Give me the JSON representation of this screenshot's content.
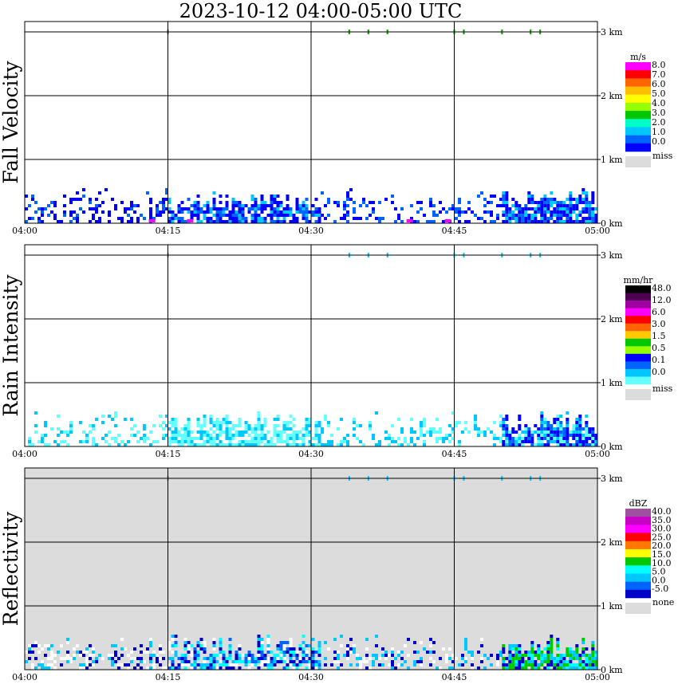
{
  "title": "2023-10-12   04:00-05:00 UTC",
  "x_ticks": [
    "04:00",
    "04:15",
    "04:30",
    "04:45",
    "05:00"
  ],
  "y_ticks": [
    "0 km",
    "1 km",
    "2 km",
    "3 km"
  ],
  "colors": {
    "frame": "#000000",
    "missing": "#dcdcdc",
    "fill_sparse": "#ffffff"
  },
  "chart_data": [
    {
      "type": "heatmap",
      "title": "Fall Velocity",
      "ylabel": "Fall Velocity",
      "x_range": [
        "04:00",
        "05:00"
      ],
      "y_range_km": [
        0,
        3
      ],
      "grid": true,
      "legend_placement": "right",
      "background": "none",
      "legend": {
        "unit": "m/s",
        "labels": [
          "8.0",
          "7.0",
          "6.0",
          "5.0",
          "4.0",
          "3.0",
          "2.0",
          "1.0",
          "0.0"
        ],
        "colors": [
          "#ff00ff",
          "#ff0000",
          "#ff6400",
          "#ffbe00",
          "#ffff00",
          "#96ff00",
          "#00c800",
          "#00ffc8",
          "#00c8ff",
          "#0064ff",
          "#0000ff"
        ],
        "missing_label": "miss"
      },
      "echo": {
        "top_km": 0.55,
        "segments": [
          {
            "start": "04:00",
            "end": "04:15",
            "density": 0.35,
            "colors": [
              "#0000ff",
              "#0064ff",
              "#0000ff"
            ]
          },
          {
            "start": "04:15",
            "end": "04:31",
            "density": 0.75,
            "colors": [
              "#0000ff",
              "#0064ff",
              "#0000ff",
              "#00c8ff"
            ]
          },
          {
            "start": "04:31",
            "end": "04:50",
            "density": 0.25,
            "colors": [
              "#0000ff",
              "#0064ff"
            ]
          },
          {
            "start": "04:50",
            "end": "05:00",
            "density": 0.85,
            "colors": [
              "#0000ff",
              "#0064ff",
              "#0000ff",
              "#00c8ff"
            ]
          }
        ],
        "accents": [
          {
            "time": "04:13",
            "color": "#ff00ff"
          },
          {
            "time": "04:17",
            "color": "#ff00ff"
          },
          {
            "time": "04:40",
            "color": "#ff00ff"
          },
          {
            "time": "04:44",
            "color": "#ff00ff"
          }
        ]
      },
      "top_marks": {
        "times": [
          "04:15",
          "04:34",
          "04:36",
          "04:38",
          "04:45",
          "04:46",
          "04:50",
          "04:53",
          "04:54"
        ],
        "color": "#00a000"
      }
    },
    {
      "type": "heatmap",
      "title": "Rain Intensity",
      "ylabel": "Rain Intensity",
      "x_range": [
        "04:00",
        "05:00"
      ],
      "y_range_km": [
        0,
        3
      ],
      "grid": true,
      "legend_placement": "right",
      "background": "none",
      "legend": {
        "unit": "mm/hr",
        "labels": [
          "48.0",
          "12.0",
          "6.0",
          "3.0",
          "1.5",
          "0.5",
          "0.1",
          "0.0"
        ],
        "colors": [
          "#000000",
          "#500050",
          "#a000a0",
          "#ff00ff",
          "#ff0000",
          "#ff6400",
          "#ffc800",
          "#00c800",
          "#96ff00",
          "#0000ff",
          "#0064ff",
          "#00c8ff",
          "#64ffff"
        ],
        "missing_label": "miss"
      },
      "echo": {
        "top_km": 0.55,
        "segments": [
          {
            "start": "04:00",
            "end": "04:15",
            "density": 0.3,
            "colors": [
              "#64ffff",
              "#64ffff",
              "#00c8ff"
            ]
          },
          {
            "start": "04:15",
            "end": "04:31",
            "density": 0.75,
            "colors": [
              "#64ffff",
              "#64ffff",
              "#00c8ff"
            ]
          },
          {
            "start": "04:31",
            "end": "04:50",
            "density": 0.25,
            "colors": [
              "#64ffff",
              "#00c8ff"
            ]
          },
          {
            "start": "04:50",
            "end": "05:00",
            "density": 0.85,
            "colors": [
              "#64ffff",
              "#00c8ff",
              "#0064ff",
              "#0000ff",
              "#0000ff"
            ]
          }
        ],
        "accents": []
      },
      "top_marks": {
        "times": [
          "04:15",
          "04:34",
          "04:36",
          "04:38",
          "04:45",
          "04:46",
          "04:50",
          "04:53",
          "04:54"
        ],
        "color": "#00c8ff"
      }
    },
    {
      "type": "heatmap",
      "title": "Reflectivity",
      "ylabel": "Reflectivity",
      "x_range": [
        "04:00",
        "05:00"
      ],
      "y_range_km": [
        0,
        3
      ],
      "grid": true,
      "legend_placement": "right",
      "background": "#dcdcdc",
      "legend": {
        "unit": "dBZ",
        "labels": [
          "40.0",
          "35.0",
          "30.0",
          "25.0",
          "20.0",
          "15.0",
          "10.0",
          "5.0",
          "0.0",
          "-5.0"
        ],
        "colors": [
          "#a050a0",
          "#c800c8",
          "#ff00ff",
          "#ff0000",
          "#ff7800",
          "#ffff00",
          "#00c800",
          "#00ffff",
          "#00c8ff",
          "#0064ff",
          "#0000c8"
        ],
        "missing_label": "none"
      },
      "echo": {
        "top_km": 0.55,
        "segments": [
          {
            "start": "04:00",
            "end": "04:15",
            "density": 0.4,
            "colors": [
              "#ffffff",
              "#ffffff",
              "#0000c8",
              "#00c8ff"
            ]
          },
          {
            "start": "04:15",
            "end": "04:31",
            "density": 0.75,
            "colors": [
              "#ffffff",
              "#0000c8",
              "#0064ff",
              "#00c8ff",
              "#00ffff"
            ]
          },
          {
            "start": "04:31",
            "end": "04:50",
            "density": 0.3,
            "colors": [
              "#ffffff",
              "#0000c8",
              "#00c8ff"
            ]
          },
          {
            "start": "04:50",
            "end": "05:00",
            "density": 0.85,
            "colors": [
              "#0000c8",
              "#00c8ff",
              "#00ffff",
              "#00c800",
              "#00c800"
            ]
          }
        ],
        "accents": []
      },
      "top_marks": {
        "times": [
          "04:15",
          "04:34",
          "04:36",
          "04:38",
          "04:45",
          "04:46",
          "04:50",
          "04:53",
          "04:54"
        ],
        "color": "#00c8ff"
      }
    }
  ]
}
